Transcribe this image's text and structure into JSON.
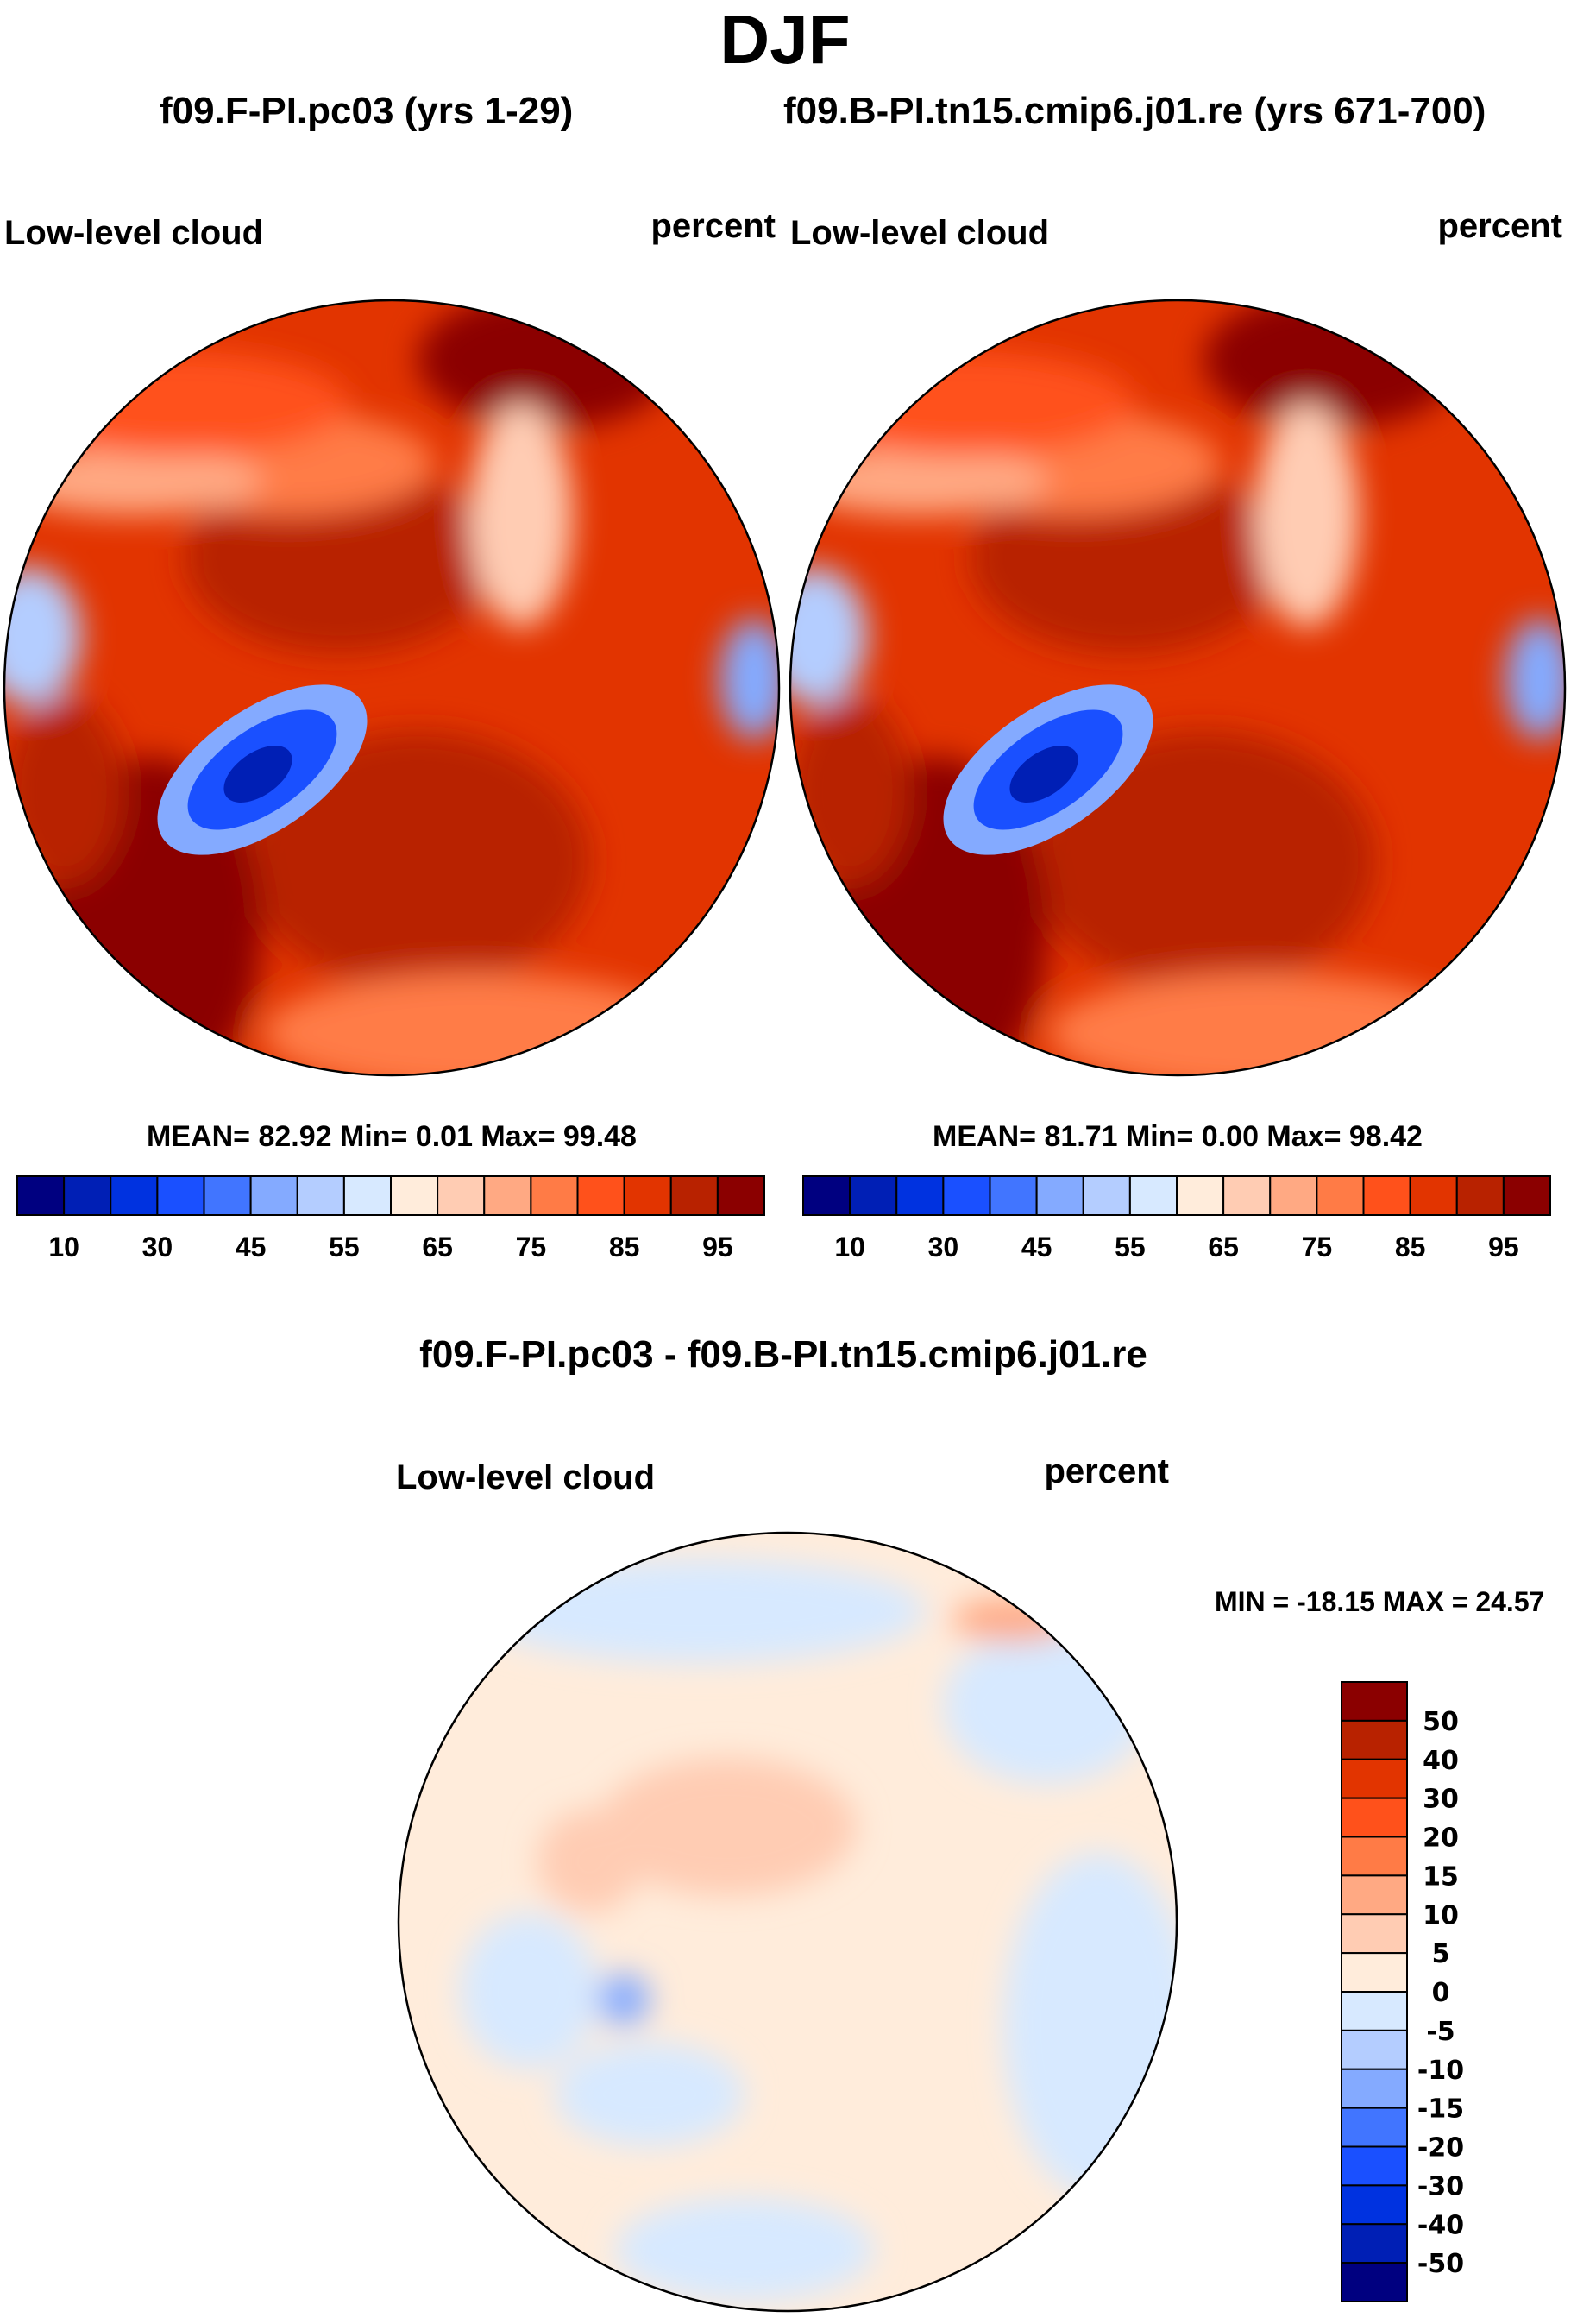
{
  "title": "DJF",
  "panels": [
    {
      "case_title": "f09.F-PI.pc03 (yrs 1-29)",
      "variable": "Low-level cloud",
      "units": "percent",
      "stats": "MEAN=  82.92  Min=   0.01  Max=  99.48"
    },
    {
      "case_title": "f09.B-PI.tn15.cmip6.j01.re (yrs 671-700)",
      "variable": "Low-level cloud",
      "units": "percent",
      "stats": "MEAN=  81.71  Min=   0.00  Max=  98.42"
    }
  ],
  "diff": {
    "title": "f09.F-PI.pc03 - f09.B-PI.tn15.cmip6.j01.re",
    "variable": "Low-level cloud",
    "units": "percent",
    "stats": "MIN = -18.15 MAX =  24.57"
  },
  "chart_data": [
    {
      "type": "heatmap",
      "projection": "north polar stereographic",
      "title": "f09.F-PI.pc03 (yrs 1-29)",
      "field": "Low-level cloud",
      "units": "percent",
      "mean": 82.92,
      "min": 0.01,
      "max": 99.48,
      "colorbar": {
        "orientation": "horizontal",
        "tick_labels": [
          "10",
          "30",
          "45",
          "55",
          "65",
          "75",
          "85",
          "95"
        ],
        "levels": [
          5,
          10,
          20,
          30,
          40,
          45,
          50,
          55,
          60,
          65,
          70,
          75,
          80,
          85,
          90,
          95
        ]
      }
    },
    {
      "type": "heatmap",
      "projection": "north polar stereographic",
      "title": "f09.B-PI.tn15.cmip6.j01.re (yrs 671-700)",
      "field": "Low-level cloud",
      "units": "percent",
      "mean": 81.71,
      "min": 0.0,
      "max": 98.42,
      "colorbar": {
        "orientation": "horizontal",
        "tick_labels": [
          "10",
          "30",
          "45",
          "55",
          "65",
          "75",
          "85",
          "95"
        ],
        "levels": [
          5,
          10,
          20,
          30,
          40,
          45,
          50,
          55,
          60,
          65,
          70,
          75,
          80,
          85,
          90,
          95
        ]
      }
    },
    {
      "type": "heatmap",
      "projection": "north polar stereographic",
      "title": "f09.F-PI.pc03 - f09.B-PI.tn15.cmip6.j01.re",
      "field": "Low-level cloud",
      "units": "percent",
      "min": -18.15,
      "max": 24.57,
      "colorbar": {
        "orientation": "vertical",
        "tick_labels": [
          "50",
          "40",
          "30",
          "20",
          "15",
          "10",
          "5",
          "0",
          "-5",
          "-10",
          "-15",
          "-20",
          "-30",
          "-40",
          "-50"
        ]
      }
    }
  ],
  "colors": [
    "#000080",
    "#001fb5",
    "#0032e0",
    "#1a50ff",
    "#4175ff",
    "#84aaff",
    "#b4cdff",
    "#d7e9ff",
    "#ffecdb",
    "#ffccb3",
    "#ffa983",
    "#ff7b46",
    "#ff511b",
    "#e23400",
    "#b82200",
    "#8b0000"
  ]
}
